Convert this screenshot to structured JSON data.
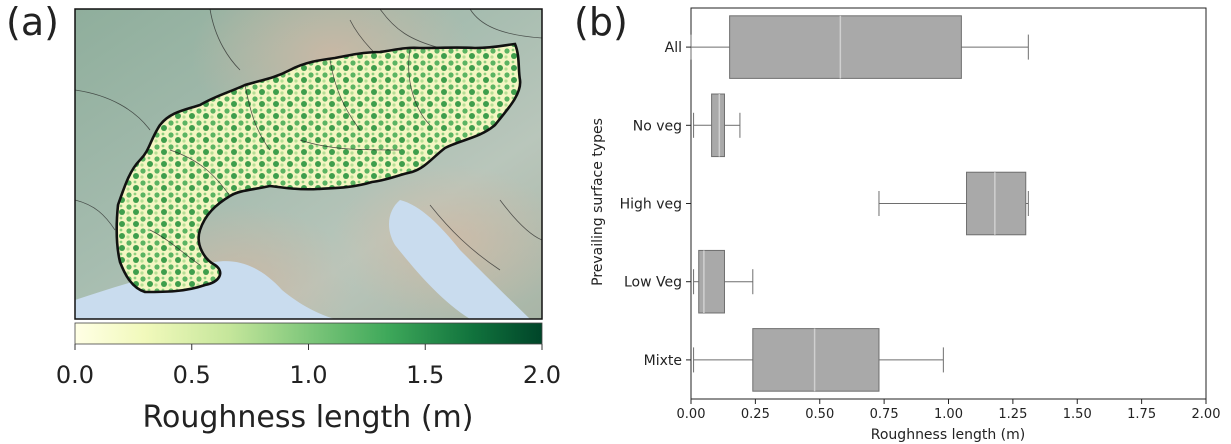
{
  "panel_a": {
    "label": "(a)",
    "colorbar": {
      "label": "Roughness length (m)",
      "ticks": [
        "0.0",
        "0.5",
        "1.0",
        "1.5",
        "2.0"
      ],
      "range": [
        0,
        2
      ],
      "colormap": [
        "#ffffe5",
        "#f0f9b9",
        "#c2e699",
        "#78c679",
        "#31a354",
        "#006837",
        "#004529"
      ]
    },
    "colors": {
      "terrain": "#9fb8ab",
      "sea": "#c8dcef",
      "domain_outline": "#111111",
      "low_roughness": "#fafabf",
      "high_roughness": "#3fa34d"
    }
  },
  "panel_b": {
    "label": "(b)"
  },
  "chart_data": {
    "type": "box",
    "orientation": "horizontal",
    "categories": [
      "All",
      "No veg",
      "High veg",
      "Low Veg",
      "Mixte"
    ],
    "boxes": [
      {
        "category": "All",
        "whisker_low": 0.0,
        "q1": 0.15,
        "median": 0.58,
        "q3": 1.05,
        "whisker_high": 1.31
      },
      {
        "category": "No veg",
        "whisker_low": 0.01,
        "q1": 0.08,
        "median": 0.11,
        "q3": 0.13,
        "whisker_high": 0.19
      },
      {
        "category": "High veg",
        "whisker_low": 0.73,
        "q1": 1.07,
        "median": 1.18,
        "q3": 1.3,
        "whisker_high": 1.31
      },
      {
        "category": "Low Veg",
        "whisker_low": 0.01,
        "q1": 0.03,
        "median": 0.05,
        "q3": 0.13,
        "whisker_high": 0.24
      },
      {
        "category": "Mixte",
        "whisker_low": 0.01,
        "q1": 0.24,
        "median": 0.48,
        "q3": 0.73,
        "whisker_high": 0.98
      }
    ],
    "xlabel": "Roughness length (m)",
    "ylabel": "Prevailing surface types",
    "xlim": [
      0,
      2
    ],
    "xticks": [
      "0.00",
      "0.25",
      "0.50",
      "0.75",
      "1.00",
      "1.25",
      "1.50",
      "1.75",
      "2.00"
    ],
    "grid": false,
    "box_color": "#a9a9a9",
    "edge_color": "#6e6e6e",
    "median_color": "#d0d0d0"
  }
}
